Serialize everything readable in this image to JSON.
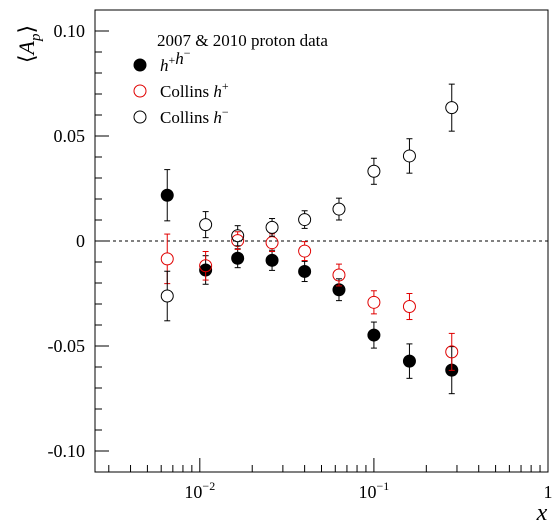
{
  "chart_data": {
    "type": "scatter",
    "title": "",
    "legend_title": "2007 & 2010 proton data",
    "legend_position": "top-left",
    "xlabel": "x",
    "ylabel": "⟨A_p⟩",
    "x_scale": "log",
    "xlim": [
      0.0025,
      1
    ],
    "ylim": [
      -0.11,
      0.11
    ],
    "x_tick_labels": [
      {
        "value": 0.01,
        "base": "10",
        "exp": "−2"
      },
      {
        "value": 0.1,
        "base": "10",
        "exp": "−1"
      },
      {
        "value": 1,
        "base": "1",
        "exp": ""
      }
    ],
    "y_ticks": [
      {
        "value": 0.1,
        "label": "0.10"
      },
      {
        "value": 0.05,
        "label": "0.05"
      },
      {
        "value": 0,
        "label": "0"
      },
      {
        "value": -0.05,
        "label": "-0.05"
      },
      {
        "value": -0.1,
        "label": "-0.10"
      }
    ],
    "reference_line": {
      "y": 0,
      "style": "dashed"
    },
    "series": [
      {
        "name": "h⁺h⁻",
        "name_base": "h",
        "name_parts": [
          {
            "t": "h",
            "sup": "+"
          },
          {
            "t": "h",
            "sup": "−"
          }
        ],
        "marker": "filled-circle",
        "color": "#000000",
        "x": [
          0.0065,
          0.0108,
          0.0165,
          0.026,
          0.04,
          0.063,
          0.1,
          0.16,
          0.28
        ],
        "y": [
          0.0218,
          -0.0138,
          -0.0082,
          -0.0092,
          -0.0145,
          -0.0232,
          -0.0448,
          -0.0572,
          -0.0615
        ],
        "err": [
          0.0122,
          0.0068,
          0.0045,
          0.0048,
          0.0048,
          0.0052,
          0.0062,
          0.0082,
          0.0112
        ]
      },
      {
        "name": "Collins h⁺",
        "name_parts": [
          {
            "t": "Collins ",
            "sup": ""
          },
          {
            "t": "h",
            "sup": "+"
          }
        ],
        "marker": "open-circle",
        "color": "#e00000",
        "x": [
          0.0065,
          0.0108,
          0.0165,
          0.026,
          0.04,
          0.063,
          0.1,
          0.16,
          0.28
        ],
        "y": [
          -0.0085,
          -0.0118,
          0.0002,
          -0.0008,
          -0.0048,
          -0.0162,
          -0.0292,
          -0.0312,
          -0.0528
        ],
        "err": [
          0.0118,
          0.0068,
          0.0042,
          0.0042,
          0.0045,
          0.0052,
          0.0055,
          0.0062,
          0.0088
        ]
      },
      {
        "name": "Collins h⁻",
        "name_parts": [
          {
            "t": "Collins ",
            "sup": ""
          },
          {
            "t": "h",
            "sup": "−"
          }
        ],
        "marker": "open-circle",
        "color": "#000000",
        "x": [
          0.0065,
          0.0108,
          0.0165,
          0.026,
          0.04,
          0.063,
          0.1,
          0.16,
          0.28
        ],
        "y": [
          -0.0262,
          0.0078,
          0.0025,
          0.0065,
          0.0102,
          0.0152,
          0.0332,
          0.0405,
          0.0635
        ],
        "err": [
          0.0118,
          0.0062,
          0.0048,
          0.0042,
          0.0042,
          0.0052,
          0.0062,
          0.0082,
          0.0112
        ]
      }
    ]
  }
}
